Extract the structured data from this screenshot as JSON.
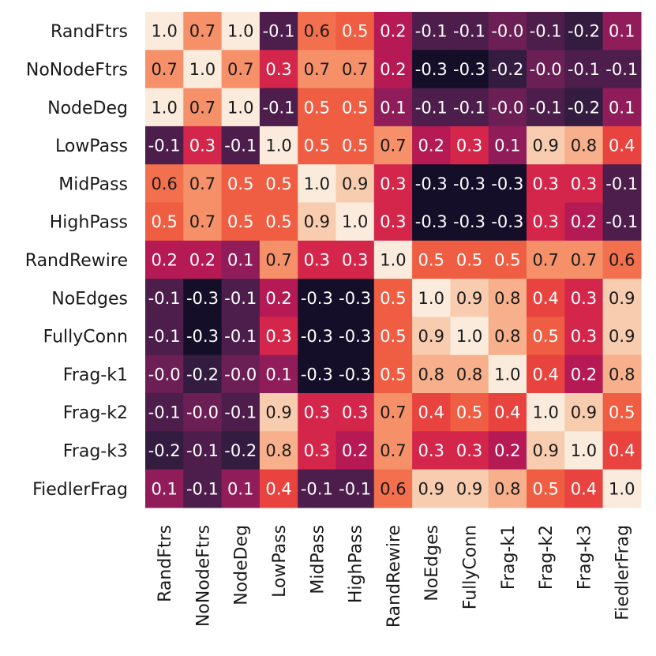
{
  "chart_data": {
    "type": "heatmap",
    "title": "",
    "xlabel": "",
    "ylabel": "",
    "row_labels": [
      "RandFtrs",
      "NoNodeFtrs",
      "NodeDeg",
      "LowPass",
      "MidPass",
      "HighPass",
      "RandRewire",
      "NoEdges",
      "FullyConn",
      "Frag-k1",
      "Frag-k2",
      "Frag-k3",
      "FiedlerFrag"
    ],
    "col_labels": [
      "RandFtrs",
      "NoNodeFtrs",
      "NodeDeg",
      "LowPass",
      "MidPass",
      "HighPass",
      "RandRewire",
      "NoEdges",
      "FullyConn",
      "Frag-k1",
      "Frag-k2",
      "Frag-k3",
      "FiedlerFrag"
    ],
    "values": [
      [
        1.0,
        0.7,
        1.0,
        -0.1,
        0.6,
        0.5,
        0.2,
        -0.1,
        -0.1,
        -0.0,
        -0.1,
        -0.2,
        0.1
      ],
      [
        0.7,
        1.0,
        0.7,
        0.3,
        0.7,
        0.7,
        0.2,
        -0.3,
        -0.3,
        -0.2,
        -0.0,
        -0.1,
        -0.1
      ],
      [
        1.0,
        0.7,
        1.0,
        -0.1,
        0.5,
        0.5,
        0.1,
        -0.1,
        -0.1,
        -0.0,
        -0.1,
        -0.2,
        0.1
      ],
      [
        -0.1,
        0.3,
        -0.1,
        1.0,
        0.5,
        0.5,
        0.7,
        0.2,
        0.3,
        0.1,
        0.9,
        0.8,
        0.4
      ],
      [
        0.6,
        0.7,
        0.5,
        0.5,
        1.0,
        0.9,
        0.3,
        -0.3,
        -0.3,
        -0.3,
        0.3,
        0.3,
        -0.1
      ],
      [
        0.5,
        0.7,
        0.5,
        0.5,
        0.9,
        1.0,
        0.3,
        -0.3,
        -0.3,
        -0.3,
        0.3,
        0.2,
        -0.1
      ],
      [
        0.2,
        0.2,
        0.1,
        0.7,
        0.3,
        0.3,
        1.0,
        0.5,
        0.5,
        0.5,
        0.7,
        0.7,
        0.6
      ],
      [
        -0.1,
        -0.3,
        -0.1,
        0.2,
        -0.3,
        -0.3,
        0.5,
        1.0,
        0.9,
        0.8,
        0.4,
        0.3,
        0.9
      ],
      [
        -0.1,
        -0.3,
        -0.1,
        0.3,
        -0.3,
        -0.3,
        0.5,
        0.9,
        1.0,
        0.8,
        0.5,
        0.3,
        0.9
      ],
      [
        -0.0,
        -0.2,
        -0.0,
        0.1,
        -0.3,
        -0.3,
        0.5,
        0.8,
        0.8,
        1.0,
        0.4,
        0.2,
        0.8
      ],
      [
        -0.1,
        -0.0,
        -0.1,
        0.9,
        0.3,
        0.3,
        0.7,
        0.4,
        0.5,
        0.4,
        1.0,
        0.9,
        0.5
      ],
      [
        -0.2,
        -0.1,
        -0.2,
        0.8,
        0.3,
        0.2,
        0.7,
        0.3,
        0.3,
        0.2,
        0.9,
        1.0,
        0.4
      ],
      [
        0.1,
        -0.1,
        0.1,
        0.4,
        -0.1,
        -0.1,
        0.6,
        0.9,
        0.9,
        0.8,
        0.5,
        0.4,
        1.0
      ]
    ],
    "value_range": [
      -0.35,
      1.0
    ],
    "colormap": "rocket",
    "colormap_stops": [
      "#03051a",
      "#2c1c3d",
      "#4c1d4b",
      "#711f57",
      "#a11a5b",
      "#cb1b4f",
      "#e83f3f",
      "#f06043",
      "#f37651",
      "#f6a47c",
      "#f8c5a4",
      "#faebdd"
    ],
    "dark_text_color": "#1a1a1a",
    "light_text_color": "#ffffff",
    "grid": false,
    "legend": "none"
  }
}
